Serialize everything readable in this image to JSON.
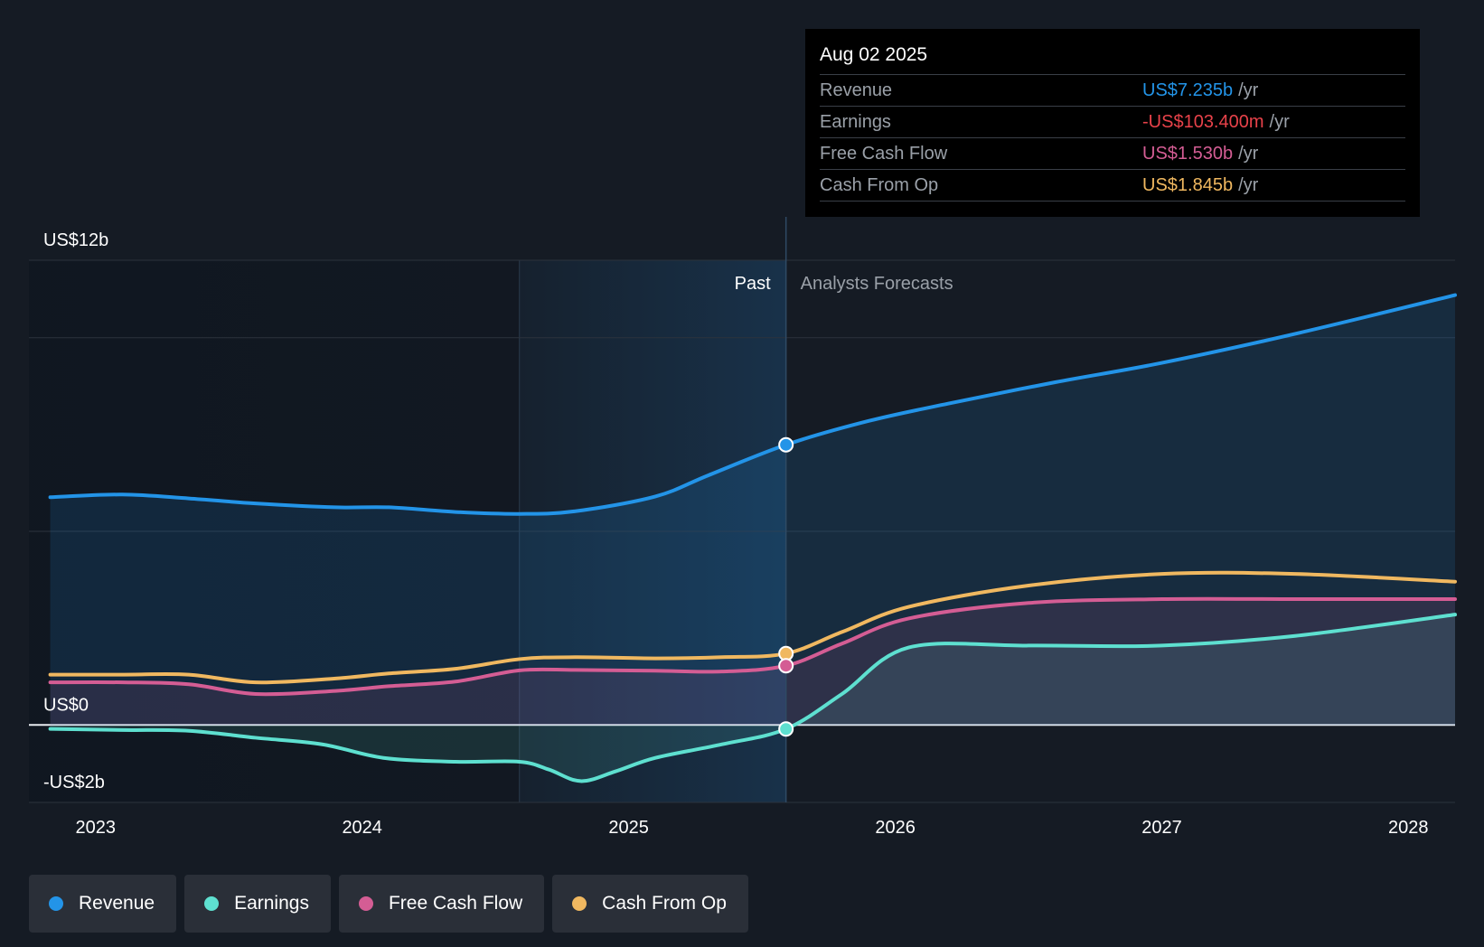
{
  "chart_data": {
    "type": "line",
    "x_domain": [
      2022.75,
      2028.1
    ],
    "ylim": [
      -2,
      12
    ],
    "y_axis_labels": [
      {
        "value": 12,
        "label": "US$12b"
      },
      {
        "value": 0,
        "label": "US$0"
      },
      {
        "value": -2,
        "label": "-US$2b"
      }
    ],
    "x_ticks": [
      {
        "value": 2023,
        "label": "2023"
      },
      {
        "value": 2024,
        "label": "2024"
      },
      {
        "value": 2025,
        "label": "2025"
      },
      {
        "value": 2026,
        "label": "2026"
      },
      {
        "value": 2027,
        "label": "2027"
      },
      {
        "value": 2028,
        "label": "2028"
      }
    ],
    "gridlines": [
      12,
      10,
      5,
      0,
      -2
    ],
    "past_label": "Past",
    "forecast_label": "Analysts Forecasts",
    "past_divider": 2025.59,
    "shade_start": 2024.59,
    "series": [
      {
        "name": "Revenue",
        "color": "#2394e8",
        "fill": true,
        "points": [
          [
            2022.83,
            5.88
          ],
          [
            2023.1,
            5.95
          ],
          [
            2023.35,
            5.85
          ],
          [
            2023.6,
            5.72
          ],
          [
            2023.9,
            5.62
          ],
          [
            2024.1,
            5.62
          ],
          [
            2024.35,
            5.5
          ],
          [
            2024.59,
            5.45
          ],
          [
            2024.8,
            5.52
          ],
          [
            2025.1,
            5.9
          ],
          [
            2025.3,
            6.45
          ],
          [
            2025.59,
            7.235
          ],
          [
            2025.9,
            7.85
          ],
          [
            2026.2,
            8.3
          ],
          [
            2026.6,
            8.85
          ],
          [
            2027.0,
            9.35
          ],
          [
            2027.5,
            10.1
          ],
          [
            2028.1,
            11.1
          ]
        ]
      },
      {
        "name": "Earnings",
        "color": "#5ee0d0",
        "fill": true,
        "points": [
          [
            2022.83,
            -0.1
          ],
          [
            2023.1,
            -0.13
          ],
          [
            2023.35,
            -0.15
          ],
          [
            2023.6,
            -0.33
          ],
          [
            2023.85,
            -0.5
          ],
          [
            2024.08,
            -0.85
          ],
          [
            2024.35,
            -0.95
          ],
          [
            2024.59,
            -0.95
          ],
          [
            2024.7,
            -1.15
          ],
          [
            2024.82,
            -1.45
          ],
          [
            2024.95,
            -1.2
          ],
          [
            2025.1,
            -0.85
          ],
          [
            2025.35,
            -0.5
          ],
          [
            2025.59,
            -0.1034
          ],
          [
            2025.8,
            0.8
          ],
          [
            2026.05,
            2.0
          ],
          [
            2026.5,
            2.05
          ],
          [
            2027.0,
            2.05
          ],
          [
            2027.5,
            2.3
          ],
          [
            2028.1,
            2.85
          ]
        ]
      },
      {
        "name": "Free Cash Flow",
        "color": "#d45d94",
        "fill": true,
        "points": [
          [
            2022.83,
            1.1
          ],
          [
            2023.1,
            1.1
          ],
          [
            2023.35,
            1.05
          ],
          [
            2023.6,
            0.8
          ],
          [
            2023.9,
            0.88
          ],
          [
            2024.1,
            1.0
          ],
          [
            2024.35,
            1.12
          ],
          [
            2024.59,
            1.41
          ],
          [
            2024.8,
            1.42
          ],
          [
            2025.1,
            1.4
          ],
          [
            2025.35,
            1.38
          ],
          [
            2025.59,
            1.53
          ],
          [
            2025.8,
            2.1
          ],
          [
            2026.05,
            2.75
          ],
          [
            2026.5,
            3.15
          ],
          [
            2027.0,
            3.25
          ],
          [
            2027.5,
            3.25
          ],
          [
            2028.1,
            3.25
          ]
        ]
      },
      {
        "name": "Cash From Op",
        "color": "#f0b860",
        "fill": false,
        "points": [
          [
            2022.83,
            1.3
          ],
          [
            2023.1,
            1.3
          ],
          [
            2023.35,
            1.3
          ],
          [
            2023.6,
            1.1
          ],
          [
            2023.9,
            1.2
          ],
          [
            2024.1,
            1.33
          ],
          [
            2024.35,
            1.45
          ],
          [
            2024.59,
            1.7
          ],
          [
            2024.8,
            1.75
          ],
          [
            2025.1,
            1.72
          ],
          [
            2025.35,
            1.75
          ],
          [
            2025.59,
            1.845
          ],
          [
            2025.8,
            2.4
          ],
          [
            2026.05,
            3.05
          ],
          [
            2026.5,
            3.6
          ],
          [
            2027.0,
            3.9
          ],
          [
            2027.5,
            3.9
          ],
          [
            2028.1,
            3.7
          ]
        ]
      }
    ],
    "markers": [
      {
        "series": "Revenue",
        "x": 2025.59,
        "y": 7.235
      },
      {
        "series": "Cash From Op",
        "x": 2025.59,
        "y": 1.845
      },
      {
        "series": "Free Cash Flow",
        "x": 2025.59,
        "y": 1.53
      },
      {
        "series": "Earnings",
        "x": 2025.59,
        "y": -0.1034
      }
    ]
  },
  "tooltip": {
    "date": "Aug 02 2025",
    "rows": [
      {
        "label": "Revenue",
        "value": "US$7.235b",
        "suffix": "/yr",
        "color": "#2394e8"
      },
      {
        "label": "Earnings",
        "value": "-US$103.400m",
        "suffix": "/yr",
        "color": "#e8424a"
      },
      {
        "label": "Free Cash Flow",
        "value": "US$1.530b",
        "suffix": "/yr",
        "color": "#d45d94"
      },
      {
        "label": "Cash From Op",
        "value": "US$1.845b",
        "suffix": "/yr",
        "color": "#f0b860"
      }
    ]
  },
  "legend": [
    {
      "label": "Revenue",
      "color": "#2394e8"
    },
    {
      "label": "Earnings",
      "color": "#5ee0d0"
    },
    {
      "label": "Free Cash Flow",
      "color": "#d45d94"
    },
    {
      "label": "Cash From Op",
      "color": "#f0b860"
    }
  ]
}
